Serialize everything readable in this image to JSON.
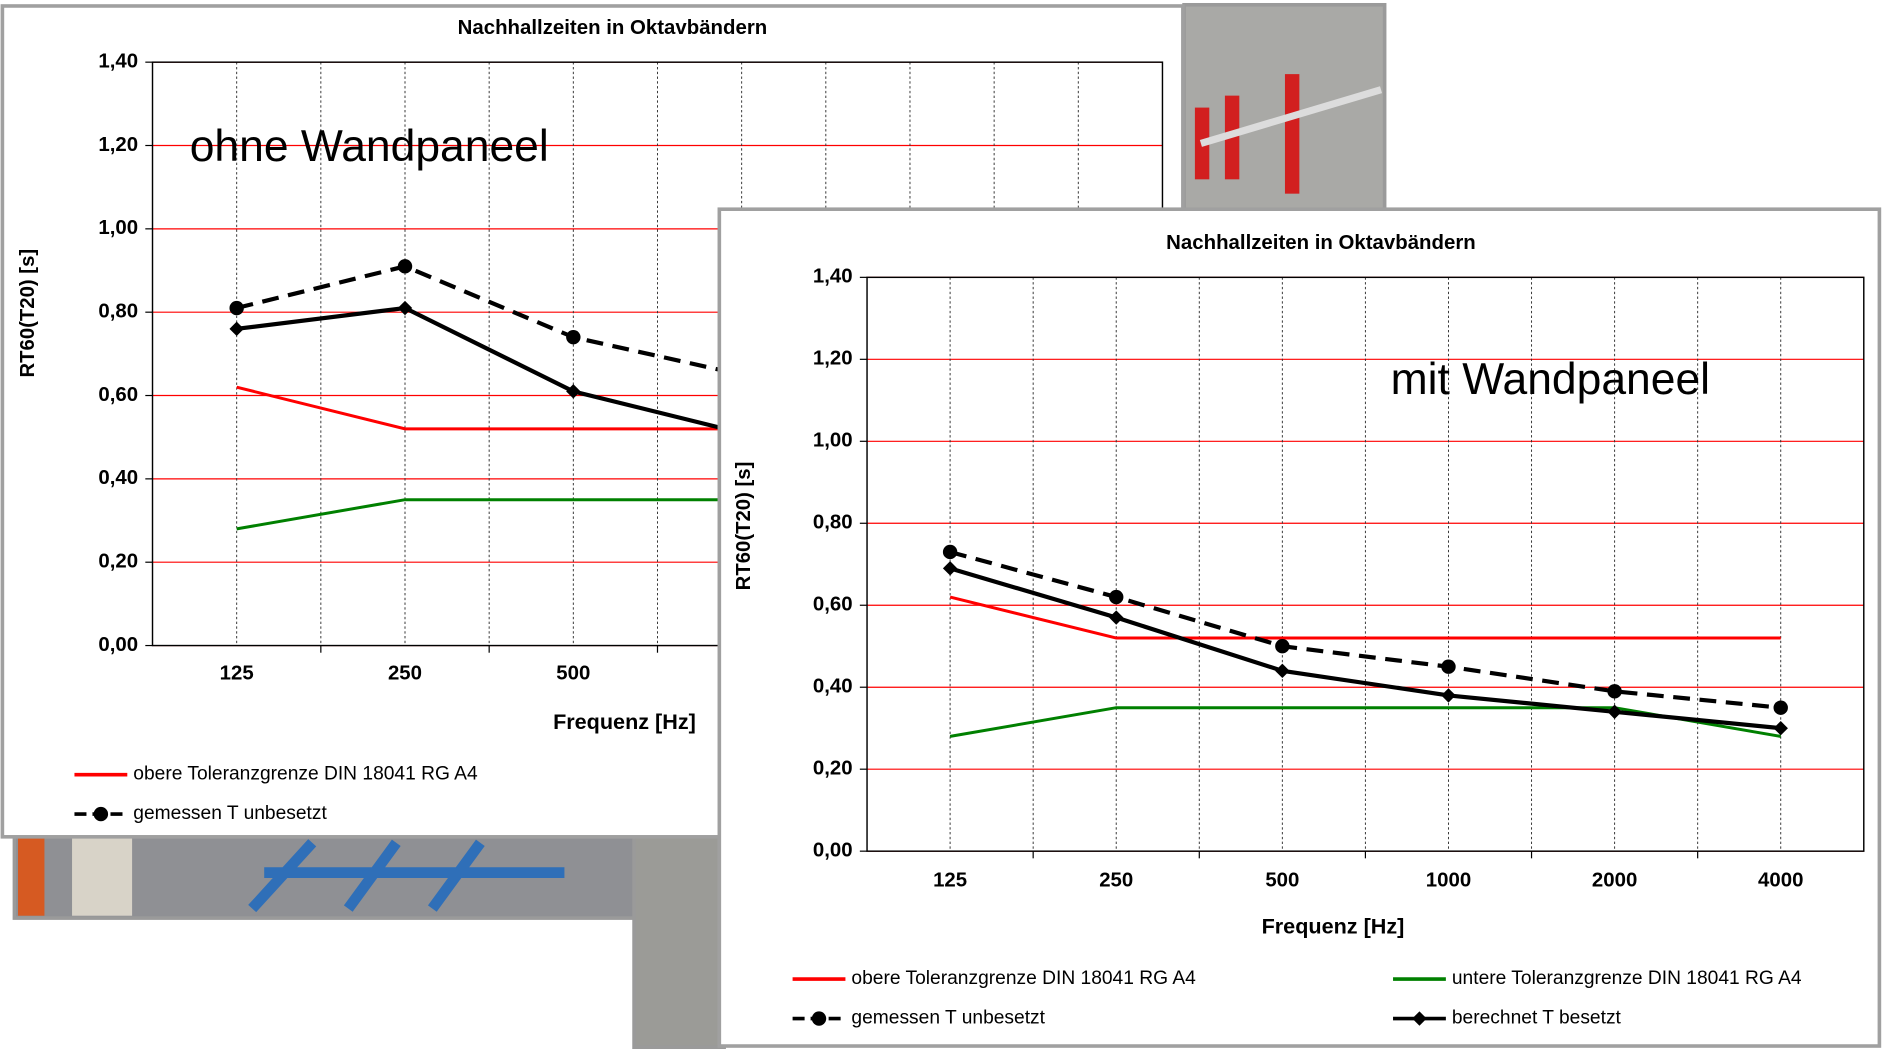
{
  "chart_data": [
    {
      "type": "line",
      "title": "Nachhallzeiten in Oktavbändern",
      "annotation": "ohne Wandpaneel",
      "x_label": "Frequenz [Hz]",
      "y_label": "RT60(T20) [s]",
      "categories": [
        "125",
        "250",
        "500",
        null,
        null,
        null
      ],
      "series": [
        {
          "name": "obere Toleranzgrenze DIN 18041 RG A4",
          "color": "#ff0000",
          "dash": false,
          "marker": "none",
          "values": [
            0.62,
            0.52,
            0.52,
            0.52,
            null,
            null
          ]
        },
        {
          "color": "#008000",
          "dash": false,
          "marker": "none",
          "values": [
            0.28,
            0.35,
            0.35,
            0.35,
            null,
            null
          ]
        },
        {
          "name": "gemessen T unbesetzt",
          "color": "#000000",
          "dash": true,
          "marker": "circle",
          "values": [
            0.81,
            0.91,
            0.74,
            0.65,
            null,
            null
          ]
        },
        {
          "color": "#000000",
          "dash": false,
          "marker": "diamond",
          "values": [
            0.76,
            0.81,
            0.61,
            0.51,
            null,
            null
          ]
        }
      ],
      "ylim": [
        0,
        1.4
      ],
      "yticks": [
        {
          "value": 0,
          "label": "0,00"
        },
        {
          "value": 0.2,
          "label": "0,20"
        },
        {
          "value": 0.4,
          "label": "0,40"
        },
        {
          "value": 0.6,
          "label": "0,60"
        },
        {
          "value": 0.8,
          "label": "0,80"
        },
        {
          "value": 1.0,
          "label": "1,00"
        },
        {
          "value": 1.2,
          "label": "1,20"
        },
        {
          "value": 1.4,
          "label": "1,40"
        }
      ],
      "grid": true
    },
    {
      "type": "line",
      "title": "Nachhallzeiten in Oktavbändern",
      "annotation": "mit Wandpaneel",
      "x_label": "Frequenz [Hz]",
      "y_label": "RT60(T20) [s]",
      "categories": [
        "125",
        "250",
        "500",
        "1000",
        "2000",
        "4000"
      ],
      "series": [
        {
          "name": "obere Toleranzgrenze DIN 18041 RG A4",
          "color": "#ff0000",
          "dash": false,
          "marker": "none",
          "values": [
            0.62,
            0.52,
            0.52,
            0.52,
            0.52,
            0.52
          ]
        },
        {
          "name": "untere Toleranzgrenze DIN 18041 RG A4",
          "color": "#008000",
          "dash": false,
          "marker": "none",
          "values": [
            0.28,
            0.35,
            0.35,
            0.35,
            0.35,
            0.28
          ]
        },
        {
          "name": "gemessen T unbesetzt",
          "color": "#000000",
          "dash": true,
          "marker": "circle",
          "values": [
            0.73,
            0.62,
            0.5,
            0.45,
            0.39,
            0.35
          ]
        },
        {
          "name": "berechnet T besetzt",
          "color": "#000000",
          "dash": false,
          "marker": "diamond",
          "values": [
            0.69,
            0.57,
            0.44,
            0.38,
            0.34,
            0.3
          ]
        }
      ],
      "ylim": [
        0,
        1.4
      ],
      "yticks": [
        {
          "value": 0,
          "label": "0,00"
        },
        {
          "value": 0.2,
          "label": "0,20"
        },
        {
          "value": 0.4,
          "label": "0,40"
        },
        {
          "value": 0.6,
          "label": "0,60"
        },
        {
          "value": 0.8,
          "label": "0,80"
        },
        {
          "value": 1.0,
          "label": "1,00"
        },
        {
          "value": 1.2,
          "label": "1,20"
        },
        {
          "value": 1.4,
          "label": "1,40"
        }
      ],
      "grid": true
    }
  ]
}
